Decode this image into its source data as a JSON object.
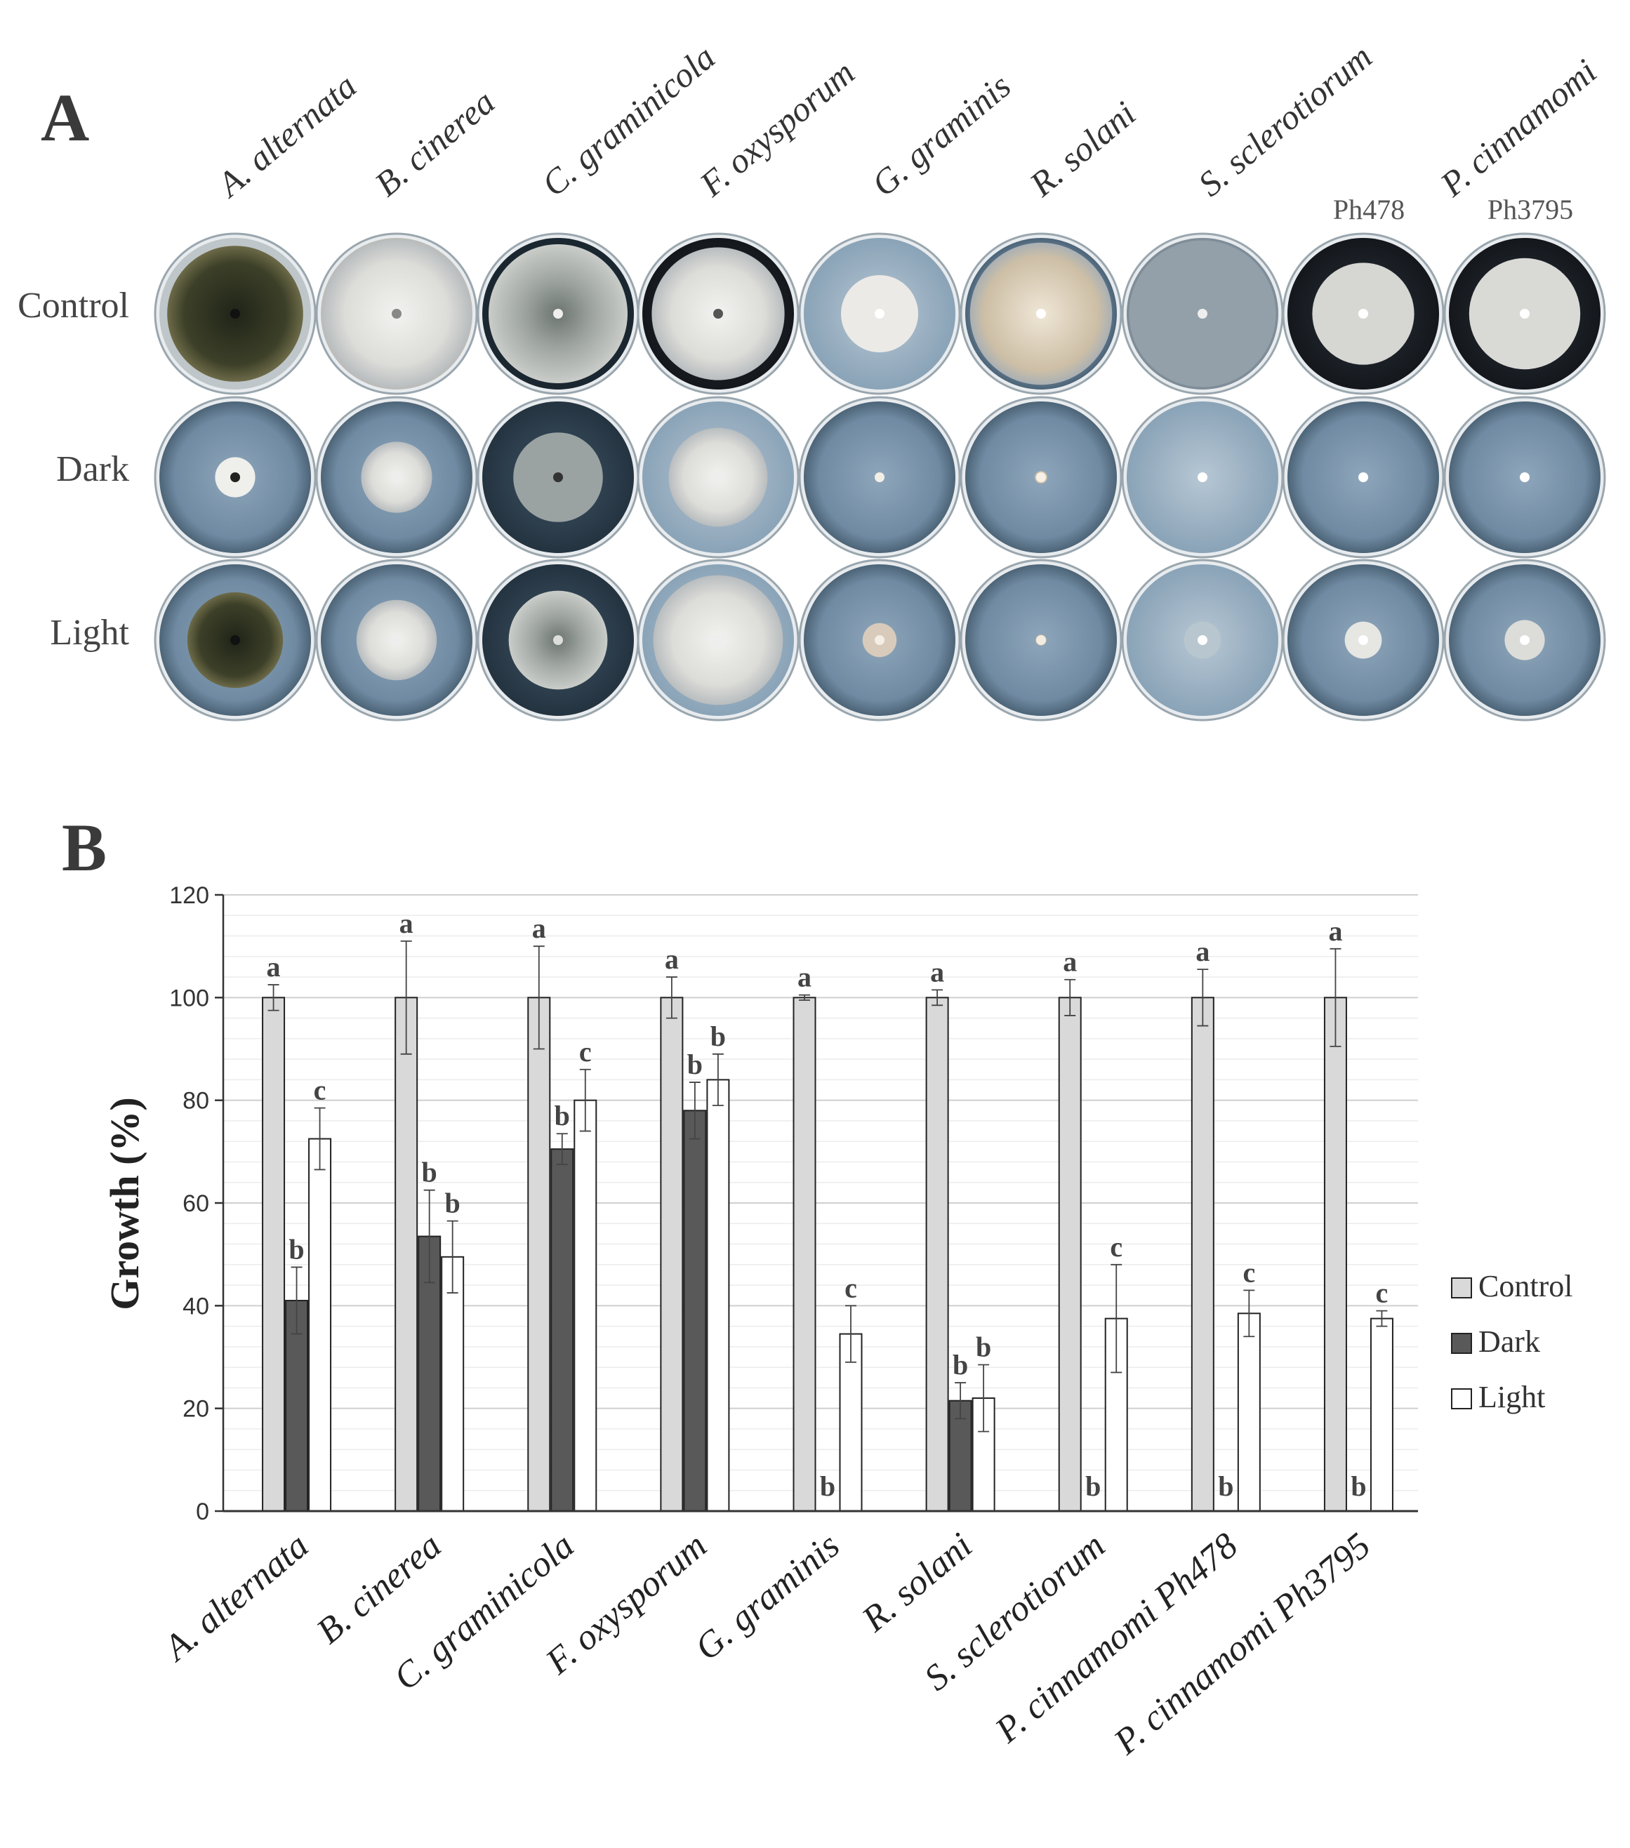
{
  "panel_a": {
    "label": "A",
    "species": [
      "A. alternata",
      "B. cinerea",
      "C. graminicola",
      "F. oxysporum",
      "G. graminis",
      "R. solani",
      "S. sclerotiorum",
      "P. cinnamomi"
    ],
    "strains": [
      "Ph478",
      "Ph3795"
    ],
    "rows": [
      "Control",
      "Dark",
      "Light"
    ]
  },
  "panel_b": {
    "label": "B"
  },
  "colors": {
    "control": "#d9d9d9",
    "dark": "#595959",
    "light": "#ffffff",
    "outline": "#222222"
  },
  "chart_data": {
    "type": "bar",
    "title": "",
    "xlabel": "",
    "ylabel": "Growth (%)",
    "ylim": [
      0,
      120
    ],
    "yticks": [
      0,
      20,
      40,
      60,
      80,
      100,
      120
    ],
    "grid": true,
    "legend_position": "right",
    "categories": [
      "A. alternata",
      "B. cinerea",
      "C. graminicola",
      "F. oxysporum",
      "G. graminis",
      "R. solani",
      "S. sclerotiorum",
      "P. cinnamomi Ph478",
      "P. cinnamomi Ph3795"
    ],
    "series": [
      {
        "name": "Control",
        "values": [
          100,
          100,
          100,
          100,
          100,
          100,
          100,
          100,
          100
        ],
        "errors": [
          2.5,
          11,
          10,
          4,
          0.5,
          1.5,
          3.5,
          5.5,
          9.5
        ],
        "letters": [
          "a",
          "a",
          "a",
          "a",
          "a",
          "a",
          "a",
          "a",
          "a"
        ]
      },
      {
        "name": "Dark",
        "values": [
          41,
          53.5,
          70.5,
          78,
          0,
          21.5,
          0,
          0,
          0
        ],
        "errors": [
          6.5,
          9,
          3,
          5.5,
          0,
          3.5,
          0,
          0,
          0
        ],
        "letters": [
          "b",
          "b",
          "b",
          "b",
          "b",
          "b",
          "b",
          "b",
          "b"
        ]
      },
      {
        "name": "Light",
        "values": [
          72.5,
          49.5,
          80,
          84,
          34.5,
          22,
          37.5,
          38.5,
          37.5
        ],
        "errors": [
          6,
          7,
          6,
          5,
          5.5,
          6.5,
          10.5,
          4.5,
          1.5
        ],
        "letters": [
          "c",
          "b",
          "c",
          "b",
          "c",
          "b",
          "c",
          "c",
          "c"
        ]
      }
    ]
  }
}
